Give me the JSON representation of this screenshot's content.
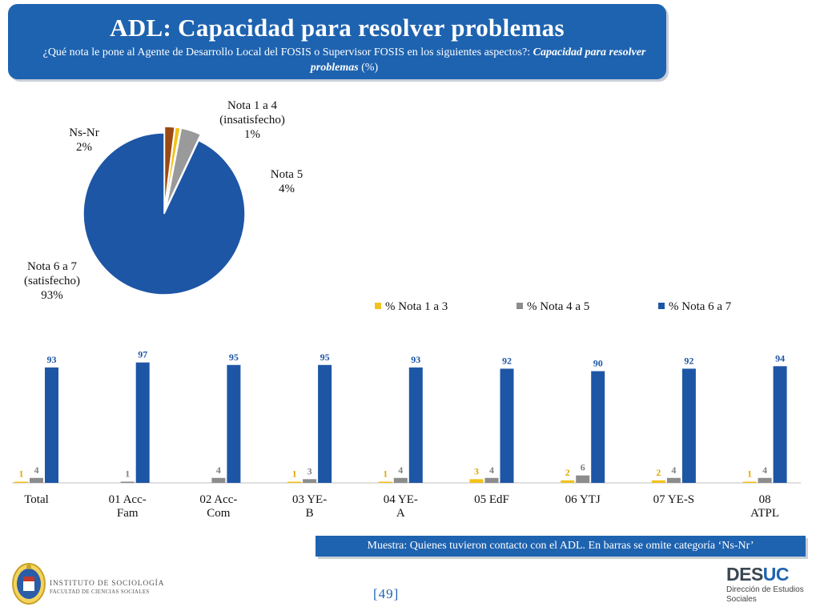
{
  "header": {
    "title": "ADL: Capacidad para resolver problemas",
    "question": "¿Qué nota le pone al Agente de Desarrollo Local del FOSIS o Supervisor FOSIS en los siguientes aspectos?:",
    "question_emph": "Capacidad para resolver problemas",
    "question_unit": "(%)"
  },
  "chart_data": [
    {
      "type": "pie",
      "slices": [
        {
          "label": [
            "Nota 6 a 7",
            "(satisfecho)"
          ],
          "value": 93,
          "value_label": "93%",
          "color": "#1e56a6"
        },
        {
          "label": [
            "Ns-Nr"
          ],
          "value": 2,
          "value_label": "2%",
          "color": "#9c4a14"
        },
        {
          "label": [
            "Nota 1 a 4",
            "(insatisfecho)"
          ],
          "value": 1,
          "value_label": "1%",
          "color": "#f2c21a"
        },
        {
          "label": [
            "Nota 5"
          ],
          "value": 4,
          "value_label": "4%",
          "color": "#9a9a9a"
        }
      ]
    },
    {
      "type": "bar",
      "categories": [
        [
          "Total"
        ],
        [
          "01 Acc-",
          "Fam"
        ],
        [
          "02 Acc-",
          "Com"
        ],
        [
          "03 YE-",
          "B"
        ],
        [
          "04 YE-",
          "A"
        ],
        [
          "05 EdF"
        ],
        [
          "06 YTJ"
        ],
        [
          "07 YE-S"
        ],
        [
          "08",
          "ATPL"
        ]
      ],
      "series": [
        {
          "name": "% Nota 1 a 3",
          "color": "#f2c21a",
          "label_color": "#e0a800",
          "values": [
            1,
            null,
            null,
            1,
            1,
            3,
            2,
            2,
            1
          ]
        },
        {
          "name": "% Nota 4 a 5",
          "color": "#8c8c8c",
          "label_color": "#7f7f7f",
          "values": [
            4,
            1,
            4,
            3,
            4,
            4,
            6,
            4,
            4
          ]
        },
        {
          "name": "% Nota 6 a 7",
          "color": "#1e56a6",
          "label_color": "#1e56a6",
          "values": [
            93,
            97,
            95,
            95,
            93,
            92,
            90,
            92,
            94
          ]
        }
      ],
      "ylim": [
        0,
        100
      ],
      "legend": "top-right",
      "grid": false
    }
  ],
  "footer": {
    "sample_note": "Muestra: Quienes tuvieron contacto con el ADL. En barras se omite categoría ‘Ns-Nr’",
    "page_number": "[49]",
    "institute_line1": "INSTITUTO DE SOCIOLOGÍA",
    "institute_line2": "FACULTAD DE CIENCIAS SOCIALES",
    "desuc_brand_a": "DES",
    "desuc_brand_b": "UC",
    "desuc_sub1": "Dirección de Estudios",
    "desuc_sub2": "Sociales"
  }
}
